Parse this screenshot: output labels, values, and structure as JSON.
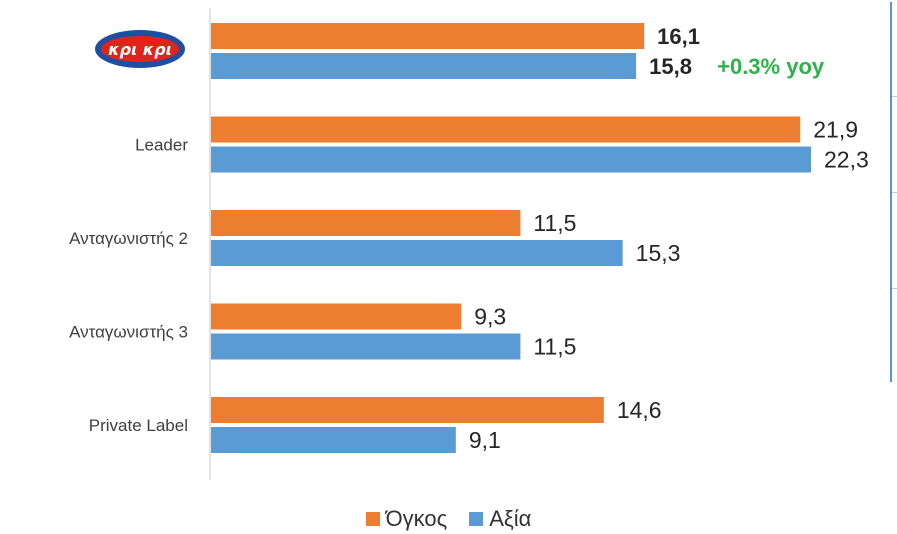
{
  "chart_data": {
    "type": "bar",
    "orientation": "horizontal",
    "categories": [
      "κρι κρι",
      "Leader",
      "Ανταγωνιστής 2",
      "Ανταγωνιστής 3",
      "Private Label"
    ],
    "category_logo": [
      true,
      false,
      false,
      false,
      false
    ],
    "series": [
      {
        "name": "Όγκος",
        "color": "#ed7d31",
        "values": [
          16.1,
          21.9,
          11.5,
          9.3,
          14.6
        ],
        "labels": [
          "16,1",
          "21,9",
          "11,5",
          "9,3",
          "14,6"
        ]
      },
      {
        "name": "Αξία",
        "color": "#5b9bd5",
        "values": [
          15.8,
          22.3,
          15.3,
          11.5,
          9.1
        ],
        "labels": [
          "15,8",
          "22,3",
          "15,3",
          "11,5",
          "9,1"
        ]
      }
    ],
    "bold_first_category": true,
    "annotation": {
      "text": "+0.3% yoy",
      "color": "#2db34a"
    },
    "xlim": [
      0,
      22.3
    ],
    "legend_position": "bottom",
    "grid": false
  },
  "logo": {
    "text": "κρι κρι",
    "colors": {
      "oval": "#1f4fa3",
      "inner": "#e2231a",
      "text": "#ffffff"
    }
  }
}
